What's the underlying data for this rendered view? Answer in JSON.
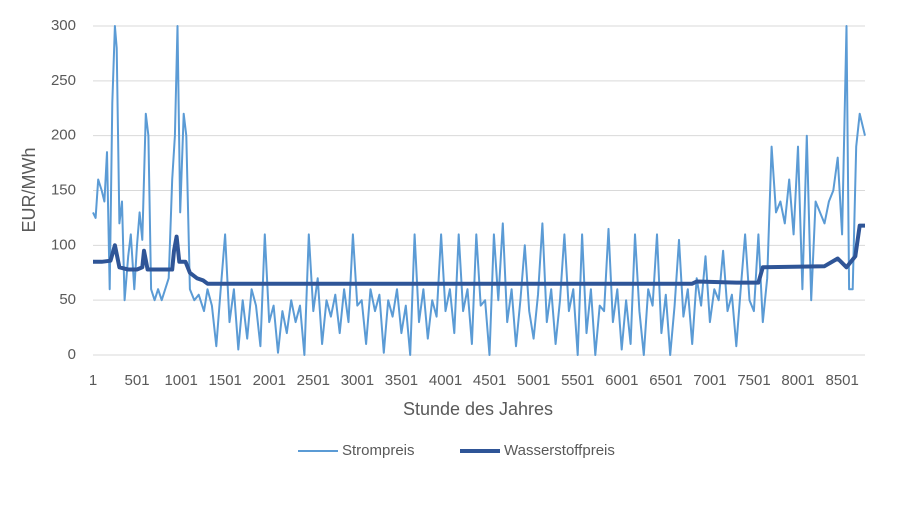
{
  "chart_data": {
    "type": "line",
    "x_label": "Stunde des Jahres",
    "y_label": "EUR/MWh",
    "xlim": [
      1,
      8760
    ],
    "xticks": [
      1,
      501,
      1001,
      1501,
      2001,
      2501,
      3001,
      3501,
      4001,
      4501,
      5001,
      5501,
      6001,
      6501,
      7001,
      7501,
      8001,
      8501
    ],
    "ylim": [
      0,
      300
    ],
    "yticks": [
      0,
      50,
      100,
      150,
      200,
      250,
      300
    ],
    "grid": true,
    "series": [
      {
        "name": "Strompreis",
        "color": "#5b9bd5",
        "width": 2,
        "x": [
          1,
          30,
          60,
          100,
          130,
          160,
          190,
          220,
          250,
          270,
          300,
          330,
          360,
          400,
          430,
          470,
          500,
          530,
          560,
          600,
          630,
          660,
          700,
          740,
          780,
          820,
          860,
          900,
          930,
          960,
          990,
          1030,
          1060,
          1100,
          1150,
          1200,
          1260,
          1300,
          1350,
          1400,
          1450,
          1500,
          1550,
          1600,
          1650,
          1700,
          1750,
          1800,
          1850,
          1900,
          1950,
          2000,
          2050,
          2100,
          2150,
          2200,
          2250,
          2300,
          2350,
          2400,
          2450,
          2500,
          2550,
          2600,
          2650,
          2700,
          2750,
          2800,
          2850,
          2900,
          2950,
          3000,
          3050,
          3100,
          3150,
          3200,
          3250,
          3300,
          3350,
          3400,
          3450,
          3500,
          3550,
          3600,
          3650,
          3700,
          3750,
          3800,
          3850,
          3900,
          3950,
          4000,
          4050,
          4100,
          4150,
          4200,
          4250,
          4300,
          4350,
          4400,
          4450,
          4500,
          4550,
          4600,
          4650,
          4700,
          4750,
          4800,
          4850,
          4900,
          4950,
          5000,
          5050,
          5100,
          5150,
          5200,
          5250,
          5300,
          5350,
          5400,
          5450,
          5500,
          5550,
          5600,
          5650,
          5700,
          5750,
          5800,
          5850,
          5900,
          5950,
          6000,
          6050,
          6100,
          6150,
          6200,
          6250,
          6300,
          6350,
          6400,
          6450,
          6500,
          6550,
          6600,
          6650,
          6700,
          6750,
          6800,
          6850,
          6900,
          6950,
          7000,
          7050,
          7100,
          7150,
          7200,
          7250,
          7300,
          7350,
          7400,
          7450,
          7500,
          7550,
          7600,
          7650,
          7700,
          7750,
          7800,
          7850,
          7900,
          7950,
          8000,
          8050,
          8100,
          8150,
          8200,
          8250,
          8300,
          8350,
          8400,
          8450,
          8500,
          8550,
          8580,
          8620,
          8660,
          8700,
          8760
        ],
        "values": [
          130,
          125,
          160,
          150,
          140,
          185,
          60,
          230,
          300,
          280,
          120,
          140,
          50,
          90,
          110,
          60,
          100,
          130,
          105,
          220,
          200,
          60,
          50,
          60,
          50,
          60,
          70,
          160,
          200,
          300,
          130,
          220,
          200,
          60,
          50,
          55,
          40,
          60,
          45,
          8,
          60,
          110,
          30,
          60,
          5,
          50,
          15,
          60,
          45,
          8,
          110,
          30,
          45,
          2,
          40,
          20,
          50,
          30,
          45,
          0,
          110,
          40,
          70,
          10,
          50,
          35,
          55,
          20,
          60,
          30,
          110,
          45,
          50,
          10,
          60,
          40,
          55,
          2,
          50,
          35,
          60,
          20,
          45,
          0,
          110,
          30,
          60,
          15,
          50,
          35,
          110,
          40,
          60,
          20,
          110,
          40,
          60,
          10,
          110,
          45,
          50,
          0,
          110,
          50,
          120,
          30,
          60,
          8,
          50,
          100,
          40,
          15,
          55,
          120,
          30,
          60,
          10,
          50,
          110,
          40,
          60,
          0,
          110,
          20,
          60,
          0,
          45,
          40,
          115,
          30,
          60,
          5,
          50,
          10,
          110,
          40,
          0,
          60,
          45,
          110,
          20,
          55,
          0,
          45,
          105,
          35,
          60,
          10,
          70,
          45,
          90,
          30,
          60,
          50,
          95,
          40,
          55,
          8,
          60,
          110,
          50,
          40,
          110,
          30,
          70,
          190,
          130,
          140,
          120,
          160,
          110,
          190,
          60,
          200,
          50,
          140,
          130,
          120,
          140,
          150,
          180,
          110,
          300,
          60,
          60,
          190,
          220,
          200
        ]
      },
      {
        "name": "Wasserstoffpreis",
        "color": "#2f5597",
        "width": 4,
        "x": [
          1,
          100,
          200,
          250,
          300,
          400,
          500,
          560,
          580,
          620,
          900,
          920,
          950,
          980,
          1050,
          1100,
          1180,
          1250,
          1300,
          6800,
          6850,
          7300,
          7550,
          7600,
          8300,
          8450,
          8550,
          8650,
          8700,
          8760
        ],
        "values": [
          85,
          85,
          86,
          100,
          80,
          78,
          78,
          80,
          95,
          78,
          78,
          95,
          108,
          85,
          85,
          75,
          70,
          68,
          65,
          65,
          67,
          66,
          66,
          80,
          81,
          88,
          80,
          90,
          118,
          118
        ]
      }
    ]
  }
}
